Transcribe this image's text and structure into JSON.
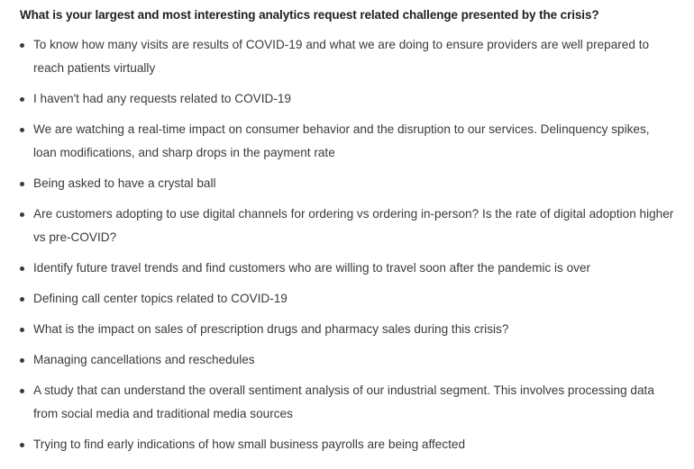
{
  "question": "What is your largest and most interesting analytics request related challenge presented by the crisis?",
  "answers": [
    "To know how many visits are results of COVID-19 and what we are doing to ensure providers are well prepared to reach patients virtually",
    "I haven't had any requests related to COVID-19",
    "We are watching a real-time impact on consumer behavior and the disruption to our services. Delinquency spikes, loan modifications, and sharp drops in the payment rate",
    "Being asked to have a crystal ball",
    "Are customers adopting to use digital channels for ordering vs ordering in-person? Is the rate of digital adoption higher vs pre-COVID?",
    "Identify future travel trends and find customers who are willing to travel soon after the pandemic is over",
    "Defining call center topics related to COVID-19",
    "What is the impact on sales of prescription drugs and pharmacy sales during this crisis?",
    "Managing cancellations and reschedules",
    "A study that can understand the overall sentiment analysis of our industrial segment. This involves processing data from social media and traditional media sources",
    "Trying to find early indications of how small business payrolls are being affected"
  ]
}
